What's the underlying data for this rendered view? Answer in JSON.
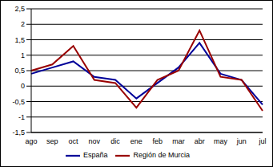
{
  "chart_data": {
    "type": "line",
    "categories": [
      "ago",
      "sep",
      "oct",
      "nov",
      "dic",
      "ene",
      "feb",
      "mar",
      "abr",
      "may",
      "jun",
      "jul"
    ],
    "series": [
      {
        "name": "España",
        "color": "#000099",
        "values": [
          0.4,
          0.6,
          0.8,
          0.3,
          0.2,
          -0.4,
          0.1,
          0.6,
          1.4,
          0.4,
          0.2,
          -0.6
        ]
      },
      {
        "name": "Región de Murcia",
        "color": "#990000",
        "values": [
          0.5,
          0.7,
          1.3,
          0.2,
          0.1,
          -0.7,
          0.2,
          0.5,
          1.8,
          0.3,
          0.2,
          -0.8
        ]
      }
    ],
    "ylim": [
      -1.5,
      2.5
    ],
    "yticks": [
      {
        "value": -1.5,
        "label": "-1,5"
      },
      -1,
      {
        "value": -0.5,
        "label": "-0,5"
      },
      0,
      {
        "value": 0.5,
        "label": "0,5"
      },
      1,
      {
        "value": 1.5,
        "label": "1,5"
      },
      2,
      {
        "value": 2.5,
        "label": "2,5"
      }
    ],
    "grid": true,
    "legend": "bottom"
  }
}
